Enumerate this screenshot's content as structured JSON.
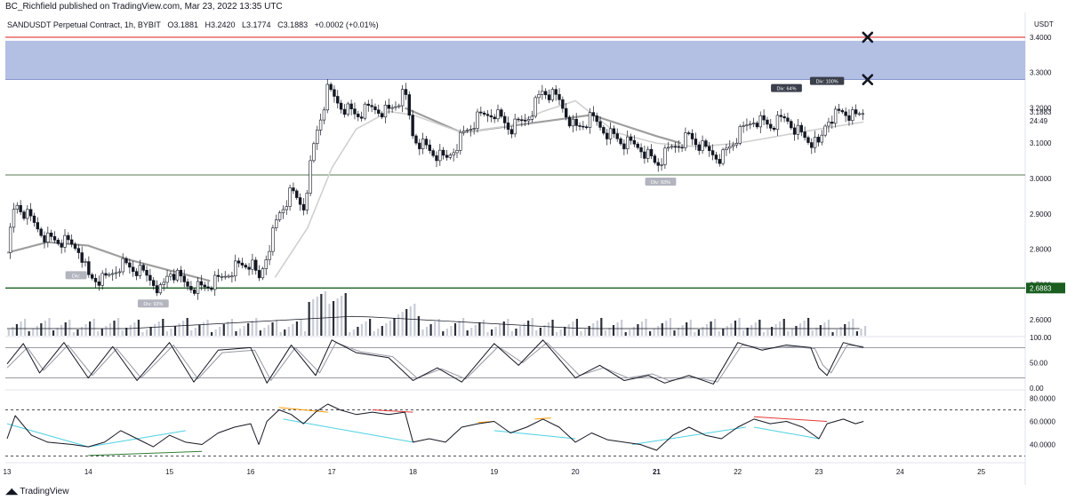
{
  "header": {
    "published": "BC_Richfield published on TradingView.com, Mar 23, 2022 13:35 UTC"
  },
  "legend": {
    "symbol": "SANDUSDT Perpetual Contract, 1h, BYBIT",
    "open": "O3.1881",
    "high": "H3.2420",
    "low": "L3.1774",
    "close": "C3.1883",
    "change": "+0.0002 (+0.01%)"
  },
  "footer": {
    "brand": "TradingView",
    "logo_icon": "tradingview-logo-icon"
  },
  "colors": {
    "up_candle": "#ffffff",
    "down_candle": "#131722",
    "resistance_zone": "#b3bfe3",
    "red_line": "#e03030",
    "green_line": "#1b5e20",
    "support_line": "#5a7a5a",
    "ma_dark": "#9e9e9e",
    "ma_light": "#d0d0d0"
  },
  "chart_data": {
    "type": "candlestick",
    "currency_label": "USDT",
    "price_axis": {
      "ticks": [
        "3.4000",
        "3.3000",
        "3.2000",
        "3.1000",
        "3.0000",
        "2.9000",
        "2.8000",
        "2.7000",
        "2.6000"
      ],
      "ylim": [
        2.555,
        3.43
      ]
    },
    "current_price": {
      "label": "3.1883",
      "countdown": "24:49"
    },
    "green_price_label": "2.6883",
    "time_axis": {
      "labels": [
        "13",
        "14",
        "15",
        "16",
        "17",
        "18",
        "19",
        "20",
        "21",
        "22",
        "23",
        "24",
        "25"
      ]
    },
    "price_path": [
      [
        13.0,
        2.79
      ],
      [
        13.1,
        2.93
      ],
      [
        13.3,
        2.88
      ],
      [
        13.5,
        2.83
      ],
      [
        13.7,
        2.82
      ],
      [
        13.9,
        2.8
      ],
      [
        14.0,
        2.72
      ],
      [
        14.2,
        2.71
      ],
      [
        14.4,
        2.76
      ],
      [
        14.6,
        2.74
      ],
      [
        14.8,
        2.71
      ],
      [
        14.9,
        2.68
      ],
      [
        15.0,
        2.74
      ],
      [
        15.2,
        2.7
      ],
      [
        15.4,
        2.69
      ],
      [
        15.6,
        2.71
      ],
      [
        15.8,
        2.75
      ],
      [
        16.0,
        2.76
      ],
      [
        16.1,
        2.71
      ],
      [
        16.2,
        2.79
      ],
      [
        16.35,
        2.9
      ],
      [
        16.5,
        2.96
      ],
      [
        16.65,
        2.92
      ],
      [
        16.8,
        3.12
      ],
      [
        16.95,
        3.25
      ],
      [
        17.1,
        3.21
      ],
      [
        17.3,
        3.18
      ],
      [
        17.5,
        3.2
      ],
      [
        17.7,
        3.19
      ],
      [
        17.9,
        3.24
      ],
      [
        18.0,
        3.12
      ],
      [
        18.2,
        3.08
      ],
      [
        18.4,
        3.05
      ],
      [
        18.6,
        3.12
      ],
      [
        18.8,
        3.17
      ],
      [
        19.0,
        3.19
      ],
      [
        19.2,
        3.14
      ],
      [
        19.4,
        3.17
      ],
      [
        19.6,
        3.25
      ],
      [
        19.8,
        3.22
      ],
      [
        20.0,
        3.14
      ],
      [
        20.2,
        3.17
      ],
      [
        20.4,
        3.13
      ],
      [
        20.6,
        3.1
      ],
      [
        20.8,
        3.09
      ],
      [
        21.0,
        3.04
      ],
      [
        21.2,
        3.09
      ],
      [
        21.4,
        3.12
      ],
      [
        21.6,
        3.08
      ],
      [
        21.8,
        3.06
      ],
      [
        22.0,
        3.12
      ],
      [
        22.2,
        3.17
      ],
      [
        22.4,
        3.15
      ],
      [
        22.6,
        3.17
      ],
      [
        22.8,
        3.12
      ],
      [
        23.0,
        3.09
      ],
      [
        23.1,
        3.17
      ],
      [
        23.3,
        3.19
      ],
      [
        23.45,
        3.17
      ],
      [
        23.55,
        3.19
      ]
    ],
    "ma_dark": [
      [
        13.0,
        2.79
      ],
      [
        13.5,
        2.82
      ],
      [
        14.0,
        2.81
      ],
      [
        14.5,
        2.77
      ],
      [
        15.0,
        2.74
      ],
      [
        15.5,
        2.71
      ],
      [
        17.9,
        3.2
      ],
      [
        18.2,
        3.17
      ],
      [
        18.6,
        3.13
      ],
      [
        20.2,
        3.18
      ],
      [
        20.6,
        3.15
      ],
      [
        21.0,
        3.12
      ],
      [
        21.3,
        3.1
      ]
    ],
    "ma_light": [
      [
        16.3,
        2.72
      ],
      [
        16.7,
        2.86
      ],
      [
        17.0,
        3.03
      ],
      [
        17.3,
        3.14
      ],
      [
        17.7,
        3.19
      ],
      [
        18.0,
        3.18
      ],
      [
        18.6,
        3.13
      ],
      [
        19.2,
        3.15
      ],
      [
        19.6,
        3.19
      ],
      [
        20.0,
        3.22
      ],
      [
        20.5,
        3.13
      ],
      [
        21.0,
        3.1
      ],
      [
        21.5,
        3.09
      ],
      [
        22.0,
        3.1
      ],
      [
        22.5,
        3.12
      ],
      [
        23.0,
        3.14
      ],
      [
        23.55,
        3.16
      ]
    ],
    "annotations": {
      "resistance_zone": [
        3.28,
        3.39
      ],
      "red_line": 3.4,
      "support_line": 3.01,
      "green_line": 2.69,
      "x_marks": [
        {
          "x": 23.6,
          "y": 3.4
        },
        {
          "x": 23.6,
          "y": 3.28
        }
      ],
      "divergence_labels": [
        {
          "text": "Div: 64%",
          "x": 22.6,
          "y": 3.255
        },
        {
          "text": "Div: 100%",
          "x": 23.1,
          "y": 3.275
        },
        {
          "text": "Div: 93%",
          "x": 21.05,
          "y": 2.99
        },
        {
          "text": "Div: 93%",
          "x": 14.8,
          "y": 2.645
        },
        {
          "text": "Div: ",
          "x": 13.85,
          "y": 2.725
        }
      ]
    },
    "stoch_panel": {
      "ticks": [
        "100.00",
        "50.00",
        "0.00"
      ],
      "levels": [
        80,
        20
      ],
      "k": [
        [
          13.0,
          48
        ],
        [
          13.2,
          88
        ],
        [
          13.4,
          30
        ],
        [
          13.7,
          90
        ],
        [
          14.0,
          20
        ],
        [
          14.3,
          82
        ],
        [
          14.6,
          15
        ],
        [
          15.0,
          90
        ],
        [
          15.3,
          12
        ],
        [
          15.6,
          75
        ],
        [
          16.0,
          80
        ],
        [
          16.2,
          10
        ],
        [
          16.5,
          85
        ],
        [
          16.8,
          25
        ],
        [
          17.0,
          95
        ],
        [
          17.3,
          70
        ],
        [
          17.7,
          60
        ],
        [
          18.0,
          15
        ],
        [
          18.3,
          40
        ],
        [
          18.6,
          12
        ],
        [
          19.0,
          88
        ],
        [
          19.3,
          45
        ],
        [
          19.6,
          95
        ],
        [
          20.0,
          20
        ],
        [
          20.3,
          45
        ],
        [
          20.6,
          15
        ],
        [
          20.9,
          25
        ],
        [
          21.1,
          10
        ],
        [
          21.4,
          25
        ],
        [
          21.7,
          8
        ],
        [
          22.0,
          90
        ],
        [
          22.3,
          75
        ],
        [
          22.6,
          85
        ],
        [
          22.9,
          80
        ],
        [
          23.0,
          40
        ],
        [
          23.1,
          25
        ],
        [
          23.3,
          90
        ],
        [
          23.55,
          80
        ]
      ],
      "d": [
        [
          13.0,
          40
        ],
        [
          13.25,
          80
        ],
        [
          13.45,
          35
        ],
        [
          13.75,
          85
        ],
        [
          14.05,
          25
        ],
        [
          14.35,
          78
        ],
        [
          14.65,
          20
        ],
        [
          15.05,
          85
        ],
        [
          15.35,
          18
        ],
        [
          15.65,
          70
        ],
        [
          16.05,
          75
        ],
        [
          16.25,
          15
        ],
        [
          16.55,
          80
        ],
        [
          16.85,
          30
        ],
        [
          17.05,
          90
        ],
        [
          17.35,
          72
        ],
        [
          17.75,
          62
        ],
        [
          18.05,
          20
        ],
        [
          18.35,
          38
        ],
        [
          18.65,
          18
        ],
        [
          19.05,
          82
        ],
        [
          19.35,
          50
        ],
        [
          19.65,
          90
        ],
        [
          20.05,
          25
        ],
        [
          20.35,
          40
        ],
        [
          20.65,
          20
        ],
        [
          20.95,
          28
        ],
        [
          21.15,
          15
        ],
        [
          21.45,
          22
        ],
        [
          21.75,
          12
        ],
        [
          22.05,
          85
        ],
        [
          22.35,
          78
        ],
        [
          22.65,
          82
        ],
        [
          22.95,
          78
        ],
        [
          23.05,
          45
        ],
        [
          23.15,
          30
        ],
        [
          23.35,
          85
        ],
        [
          23.55,
          82
        ]
      ]
    },
    "rsi_panel": {
      "ticks": [
        "80.0000",
        "60.0000",
        "40.0000"
      ],
      "levels": [
        70,
        30
      ],
      "rsi": [
        [
          13.0,
          45
        ],
        [
          13.1,
          65
        ],
        [
          13.3,
          48
        ],
        [
          13.5,
          42
        ],
        [
          13.8,
          40
        ],
        [
          14.0,
          38
        ],
        [
          14.2,
          42
        ],
        [
          14.4,
          52
        ],
        [
          14.6,
          45
        ],
        [
          14.8,
          38
        ],
        [
          15.0,
          48
        ],
        [
          15.2,
          42
        ],
        [
          15.4,
          40
        ],
        [
          15.6,
          50
        ],
        [
          15.8,
          55
        ],
        [
          16.0,
          58
        ],
        [
          16.1,
          40
        ],
        [
          16.2,
          60
        ],
        [
          16.35,
          70
        ],
        [
          16.5,
          66
        ],
        [
          16.65,
          58
        ],
        [
          16.8,
          68
        ],
        [
          16.95,
          75
        ],
        [
          17.1,
          70
        ],
        [
          17.3,
          66
        ],
        [
          17.5,
          68
        ],
        [
          17.7,
          66
        ],
        [
          17.9,
          68
        ],
        [
          18.0,
          42
        ],
        [
          18.2,
          45
        ],
        [
          18.4,
          42
        ],
        [
          18.6,
          55
        ],
        [
          18.8,
          58
        ],
        [
          19.0,
          60
        ],
        [
          19.2,
          50
        ],
        [
          19.4,
          55
        ],
        [
          19.6,
          62
        ],
        [
          19.8,
          55
        ],
        [
          20.0,
          42
        ],
        [
          20.2,
          50
        ],
        [
          20.4,
          44
        ],
        [
          20.6,
          42
        ],
        [
          20.8,
          40
        ],
        [
          21.0,
          35
        ],
        [
          21.2,
          48
        ],
        [
          21.4,
          55
        ],
        [
          21.6,
          48
        ],
        [
          21.8,
          45
        ],
        [
          22.0,
          55
        ],
        [
          22.2,
          62
        ],
        [
          22.4,
          58
        ],
        [
          22.6,
          60
        ],
        [
          22.8,
          55
        ],
        [
          23.0,
          45
        ],
        [
          23.1,
          58
        ],
        [
          23.3,
          62
        ],
        [
          23.45,
          58
        ],
        [
          23.55,
          60
        ]
      ]
    }
  }
}
